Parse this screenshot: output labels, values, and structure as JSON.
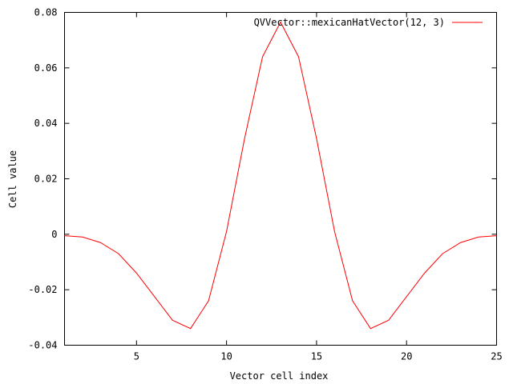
{
  "chart_data": {
    "type": "line",
    "title": "",
    "xlabel": "Vector cell index",
    "ylabel": "Cell value",
    "xlim": [
      1,
      25
    ],
    "ylim": [
      -0.04,
      0.08
    ],
    "xticks": [
      5,
      10,
      15,
      20,
      25
    ],
    "yticks": [
      -0.04,
      -0.02,
      0,
      0.02,
      0.04,
      0.06,
      0.08
    ],
    "xtick_labels": [
      "5",
      "10",
      "15",
      "20",
      "25"
    ],
    "ytick_labels": [
      "-0.04",
      "-0.02",
      "0",
      "0.02",
      "0.04",
      "0.06",
      "0.08"
    ],
    "grid": false,
    "legend_position": "top-right",
    "series": [
      {
        "name": "QVVector::mexicanHatVector(12, 3)",
        "color": "#ff0000",
        "x": [
          1,
          2,
          3,
          4,
          5,
          6,
          7,
          8,
          9,
          10,
          11,
          12,
          13,
          14,
          15,
          16,
          17,
          18,
          19,
          20,
          21,
          22,
          23,
          24,
          25
        ],
        "values": [
          -0.0005,
          -0.001,
          -0.003,
          -0.007,
          -0.014,
          -0.0225,
          -0.031,
          -0.034,
          -0.024,
          0.001,
          0.0345,
          0.064,
          0.0765,
          0.064,
          0.0345,
          0.001,
          -0.024,
          -0.034,
          -0.031,
          -0.0225,
          -0.014,
          -0.007,
          -0.003,
          -0.001,
          -0.0005
        ]
      }
    ]
  }
}
